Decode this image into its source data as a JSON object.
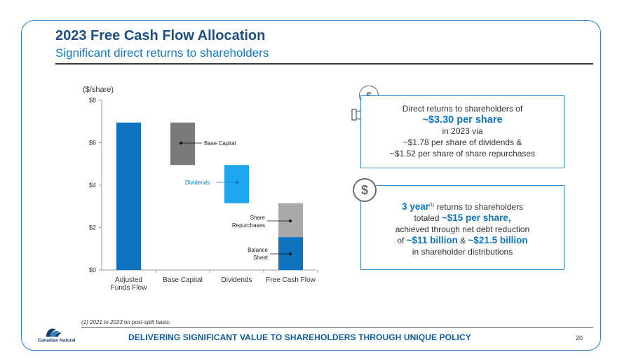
{
  "header": {
    "title": "2023 Free Cash Flow Allocation",
    "subtitle": "Significant direct returns to shareholders"
  },
  "chart_data": {
    "type": "bar",
    "subtype": "waterfall",
    "ylabel": "($/share)",
    "ylim": [
      0,
      8
    ],
    "y_ticks": [
      "$0",
      "$2",
      "$4",
      "$6",
      "$8"
    ],
    "categories": [
      "Adjusted Funds Flow",
      "Base Capital",
      "Dividends",
      "Free Cash Flow"
    ],
    "bars": [
      {
        "category": "Adjusted Funds Flow",
        "bottom": 0,
        "top": 6.95,
        "color": "#0f74bf"
      },
      {
        "category": "Base Capital",
        "bottom": 4.95,
        "top": 6.95,
        "color": "#7a7a7a",
        "label": "Base Capital"
      },
      {
        "category": "Dividends",
        "bottom": 3.15,
        "top": 4.95,
        "color": "#1ea7ef",
        "label": "Dividends"
      },
      {
        "category": "Free Cash Flow",
        "bottom": 1.55,
        "top": 3.15,
        "color": "#a9a9a9",
        "label": "Share Repurchases"
      },
      {
        "category": "Free Cash Flow",
        "bottom": 0,
        "top": 1.55,
        "color": "#0f74bf",
        "label": "Balance Sheet"
      }
    ],
    "annotations": {
      "base_capital": "Base Capital",
      "dividends": "Dividends",
      "share_repurchases_1": "Share",
      "share_repurchases_2": "Repurchases",
      "balance_sheet_1": "Balance",
      "balance_sheet_2": "Sheet"
    },
    "grid": false,
    "legend": "none"
  },
  "callout1": {
    "line1": "Direct returns to shareholders of",
    "line2": "~$3.30 per share",
    "line3": "in 2023 via",
    "line4": "~$1.78 per share of dividends &",
    "line5": "~$1.52 per share of share repurchases",
    "icon": "dollar-coin-hand-icon"
  },
  "callout2": {
    "lead": "3 year",
    "sup": "(1)",
    "line1_rest": " returns to shareholders",
    "line2_a": "totaled ",
    "line2_b": "~$15 per share",
    "line2_c": ",",
    "line3": "achieved through net debt reduction",
    "line4_a": "of ",
    "line4_b": "~$11 billion",
    "line4_c": " & ",
    "line4_d": "~$21.5 billion",
    "line5": "in shareholder distributions",
    "icon": "dollar-circle-icon"
  },
  "footnote": "(1)  2021 to 2023 on post-split basis.",
  "footer": {
    "tagline": "DELIVERING SIGNIFICANT VALUE TO SHAREHOLDERS THROUGH UNIQUE POLICY",
    "page_number": "20",
    "logo_text": "Canadian Natural"
  }
}
